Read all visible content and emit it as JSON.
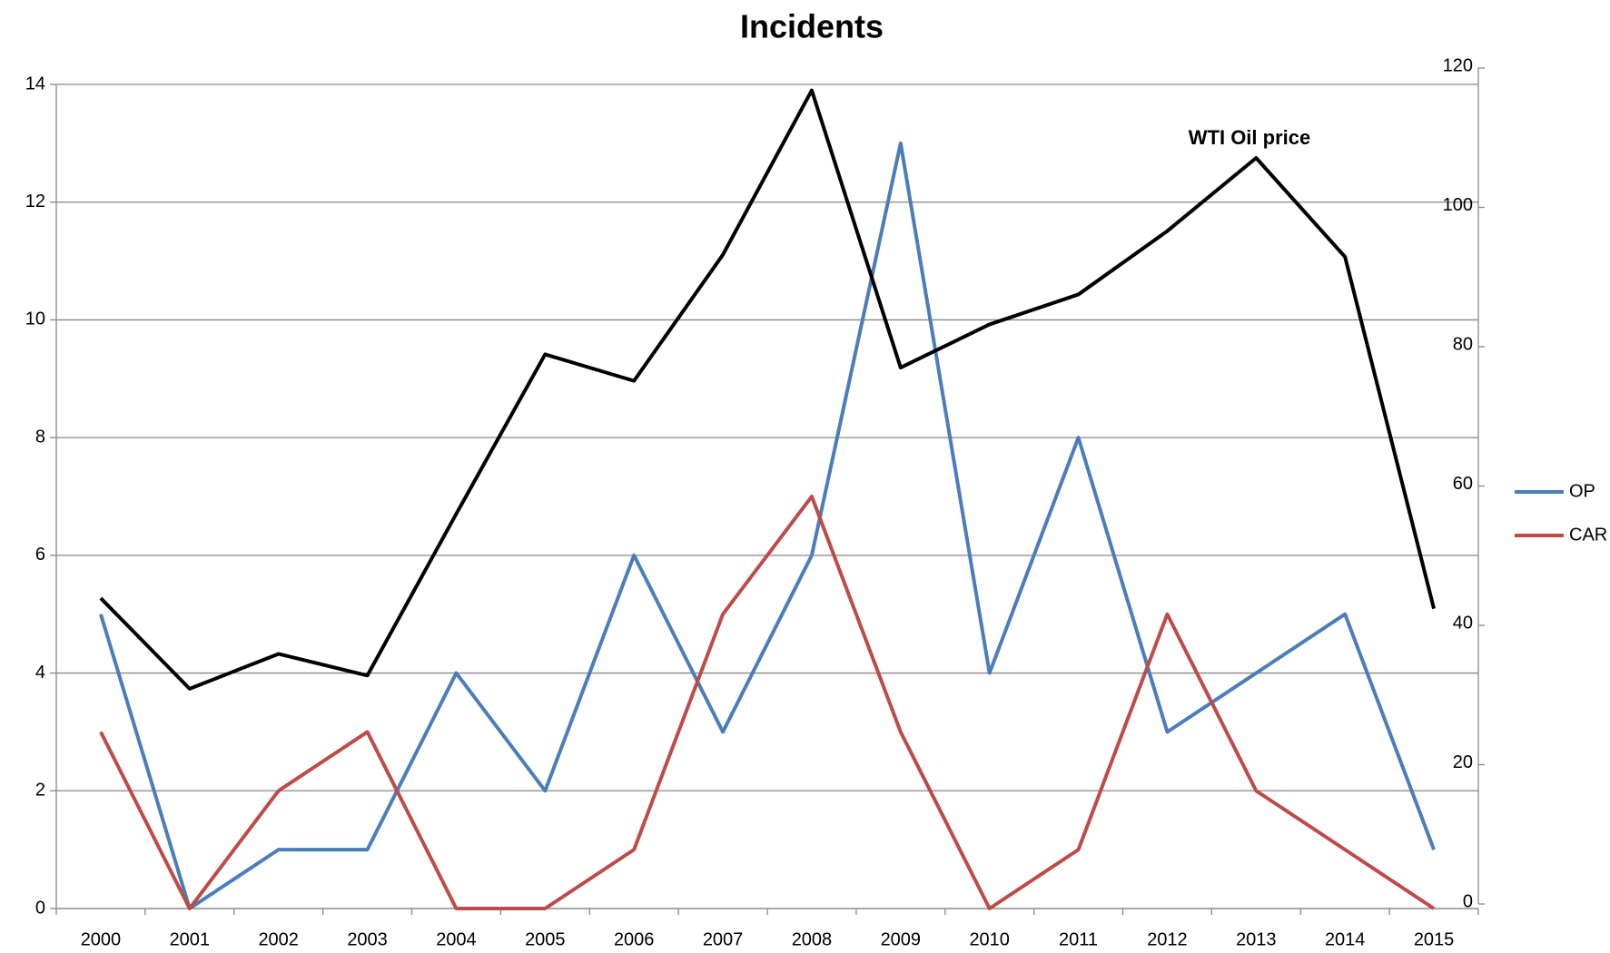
{
  "chart_data": {
    "type": "line",
    "title": "Incidents",
    "categories": [
      "2000",
      "2001",
      "2002",
      "2003",
      "2004",
      "2005",
      "2006",
      "2007",
      "2008",
      "2009",
      "2010",
      "2011",
      "2012",
      "2013",
      "2014",
      "2015"
    ],
    "series": [
      {
        "name": "OP",
        "color": "#4a7ebb",
        "values": [
          5,
          0,
          1,
          1,
          4,
          2,
          6,
          3,
          6,
          13,
          4,
          8,
          3,
          4,
          5,
          1
        ]
      },
      {
        "name": "CAR",
        "color": "#be4b48",
        "values": [
          3,
          0,
          2,
          3,
          0,
          0,
          1,
          5,
          7,
          3,
          0,
          1,
          5,
          2,
          1,
          0
        ]
      },
      {
        "name": "WTI Oil price",
        "color": "#000000",
        "axis": "y2",
        "in_legend": false,
        "values": [
          43.9,
          30.9,
          35.9,
          32.8,
          56,
          78.9,
          75.1,
          93.2,
          116.8,
          77,
          83.2,
          87.5,
          96.6,
          107.1,
          92.9,
          42.4
        ]
      }
    ],
    "ylim": [
      0,
      14
    ],
    "yticks": [
      0,
      2,
      4,
      6,
      8,
      10,
      12,
      14
    ],
    "y2lim": [
      0,
      120
    ],
    "y2ticks": [
      0,
      20,
      40,
      60,
      80,
      100,
      120
    ],
    "grid": true,
    "legend": "right"
  }
}
